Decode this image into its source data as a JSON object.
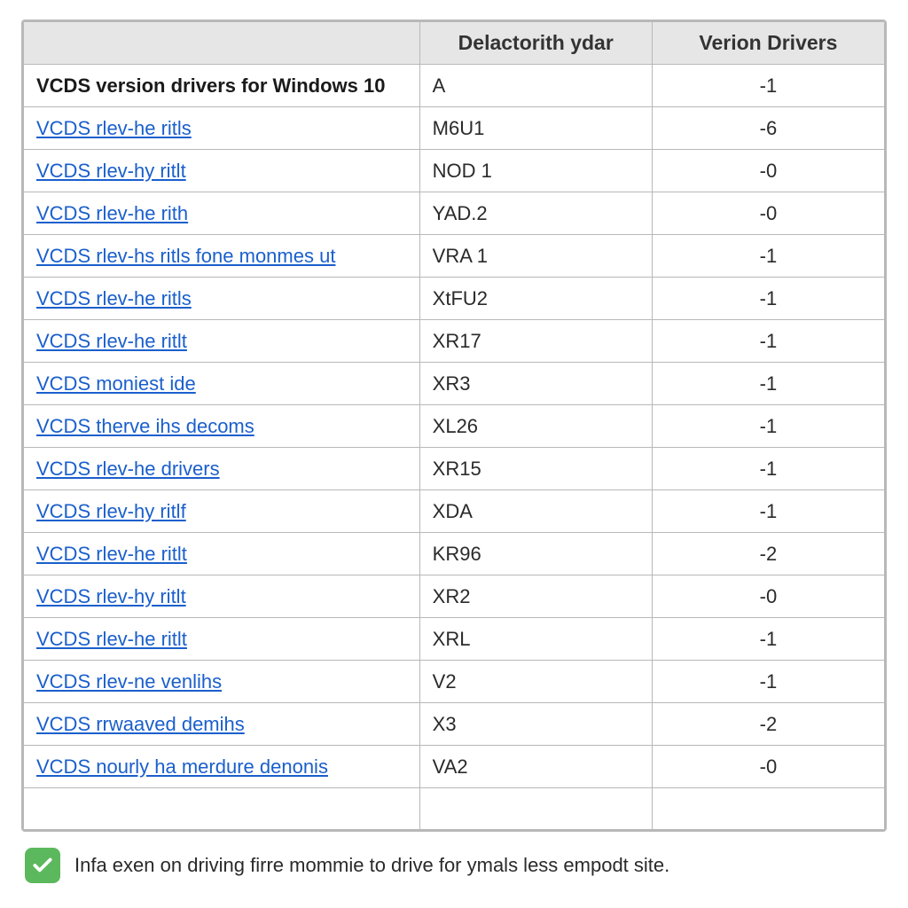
{
  "table": {
    "columns": [
      "",
      "Delactorith ydar",
      "Verion Drivers"
    ],
    "header_bg": "#e6e6e6",
    "border_color": "#b8b8b8",
    "link_color": "#1a5fcc",
    "text_color": "#222222",
    "rows": [
      {
        "name": "VCDS version drivers for Windows 10",
        "code": "A",
        "version": "-1",
        "bold": true,
        "is_link": false
      },
      {
        "name": "VCDS rlev-he ritls",
        "code": "M6U1",
        "version": "-6",
        "bold": false,
        "is_link": true
      },
      {
        "name": "VCDS rlev-hy ritlt",
        "code": "NOD 1",
        "version": "-0",
        "bold": false,
        "is_link": true
      },
      {
        "name": "VCDS rlev-he rith",
        "code": "YAD.2",
        "version": "-0",
        "bold": false,
        "is_link": true
      },
      {
        "name": "VCDS rlev-hs ritls fone monmes ut",
        "code": "VRA 1",
        "version": "-1",
        "bold": false,
        "is_link": true
      },
      {
        "name": "VCDS rlev-he ritls",
        "code": "XtFU2",
        "version": "-1",
        "bold": false,
        "is_link": true
      },
      {
        "name": "VCDS rlev-he ritlt",
        "code": "XR17",
        "version": "-1",
        "bold": false,
        "is_link": true
      },
      {
        "name": "VCDS moniest ide",
        "code": "XR3",
        "version": "-1",
        "bold": false,
        "is_link": true
      },
      {
        "name": "VCDS therve ihs decoms",
        "code": "XL26",
        "version": "-1",
        "bold": false,
        "is_link": true
      },
      {
        "name": "VCDS rlev-he drivers",
        "code": "XR15",
        "version": "-1",
        "bold": false,
        "is_link": true
      },
      {
        "name": "VCDS rlev-hy ritlf",
        "code": "XDA",
        "version": "-1",
        "bold": false,
        "is_link": true
      },
      {
        "name": "VCDS rlev-he ritlt",
        "code": "KR96",
        "version": "-2",
        "bold": false,
        "is_link": true
      },
      {
        "name": "VCDS rlev-hy ritlt",
        "code": "XR2",
        "version": "-0",
        "bold": false,
        "is_link": true
      },
      {
        "name": "VCDS rlev-he ritlt",
        "code": "XRL",
        "version": "-1",
        "bold": false,
        "is_link": true
      },
      {
        "name": "VCDS rlev-ne venlihs",
        "code": "V2",
        "version": "-1",
        "bold": false,
        "is_link": true
      },
      {
        "name": "VCDS rrwaaved demihs",
        "code": "X3",
        "version": "-2",
        "bold": false,
        "is_link": true
      },
      {
        "name": "VCDS nourly ha merdure denonis",
        "code": "VA2",
        "version": "-0",
        "bold": false,
        "is_link": true
      }
    ]
  },
  "footer": {
    "text": "Infa exen on driving firre mommie to drive for ymals less empodt site.",
    "check_bg": "#5cb85c",
    "check_fg": "#ffffff"
  }
}
